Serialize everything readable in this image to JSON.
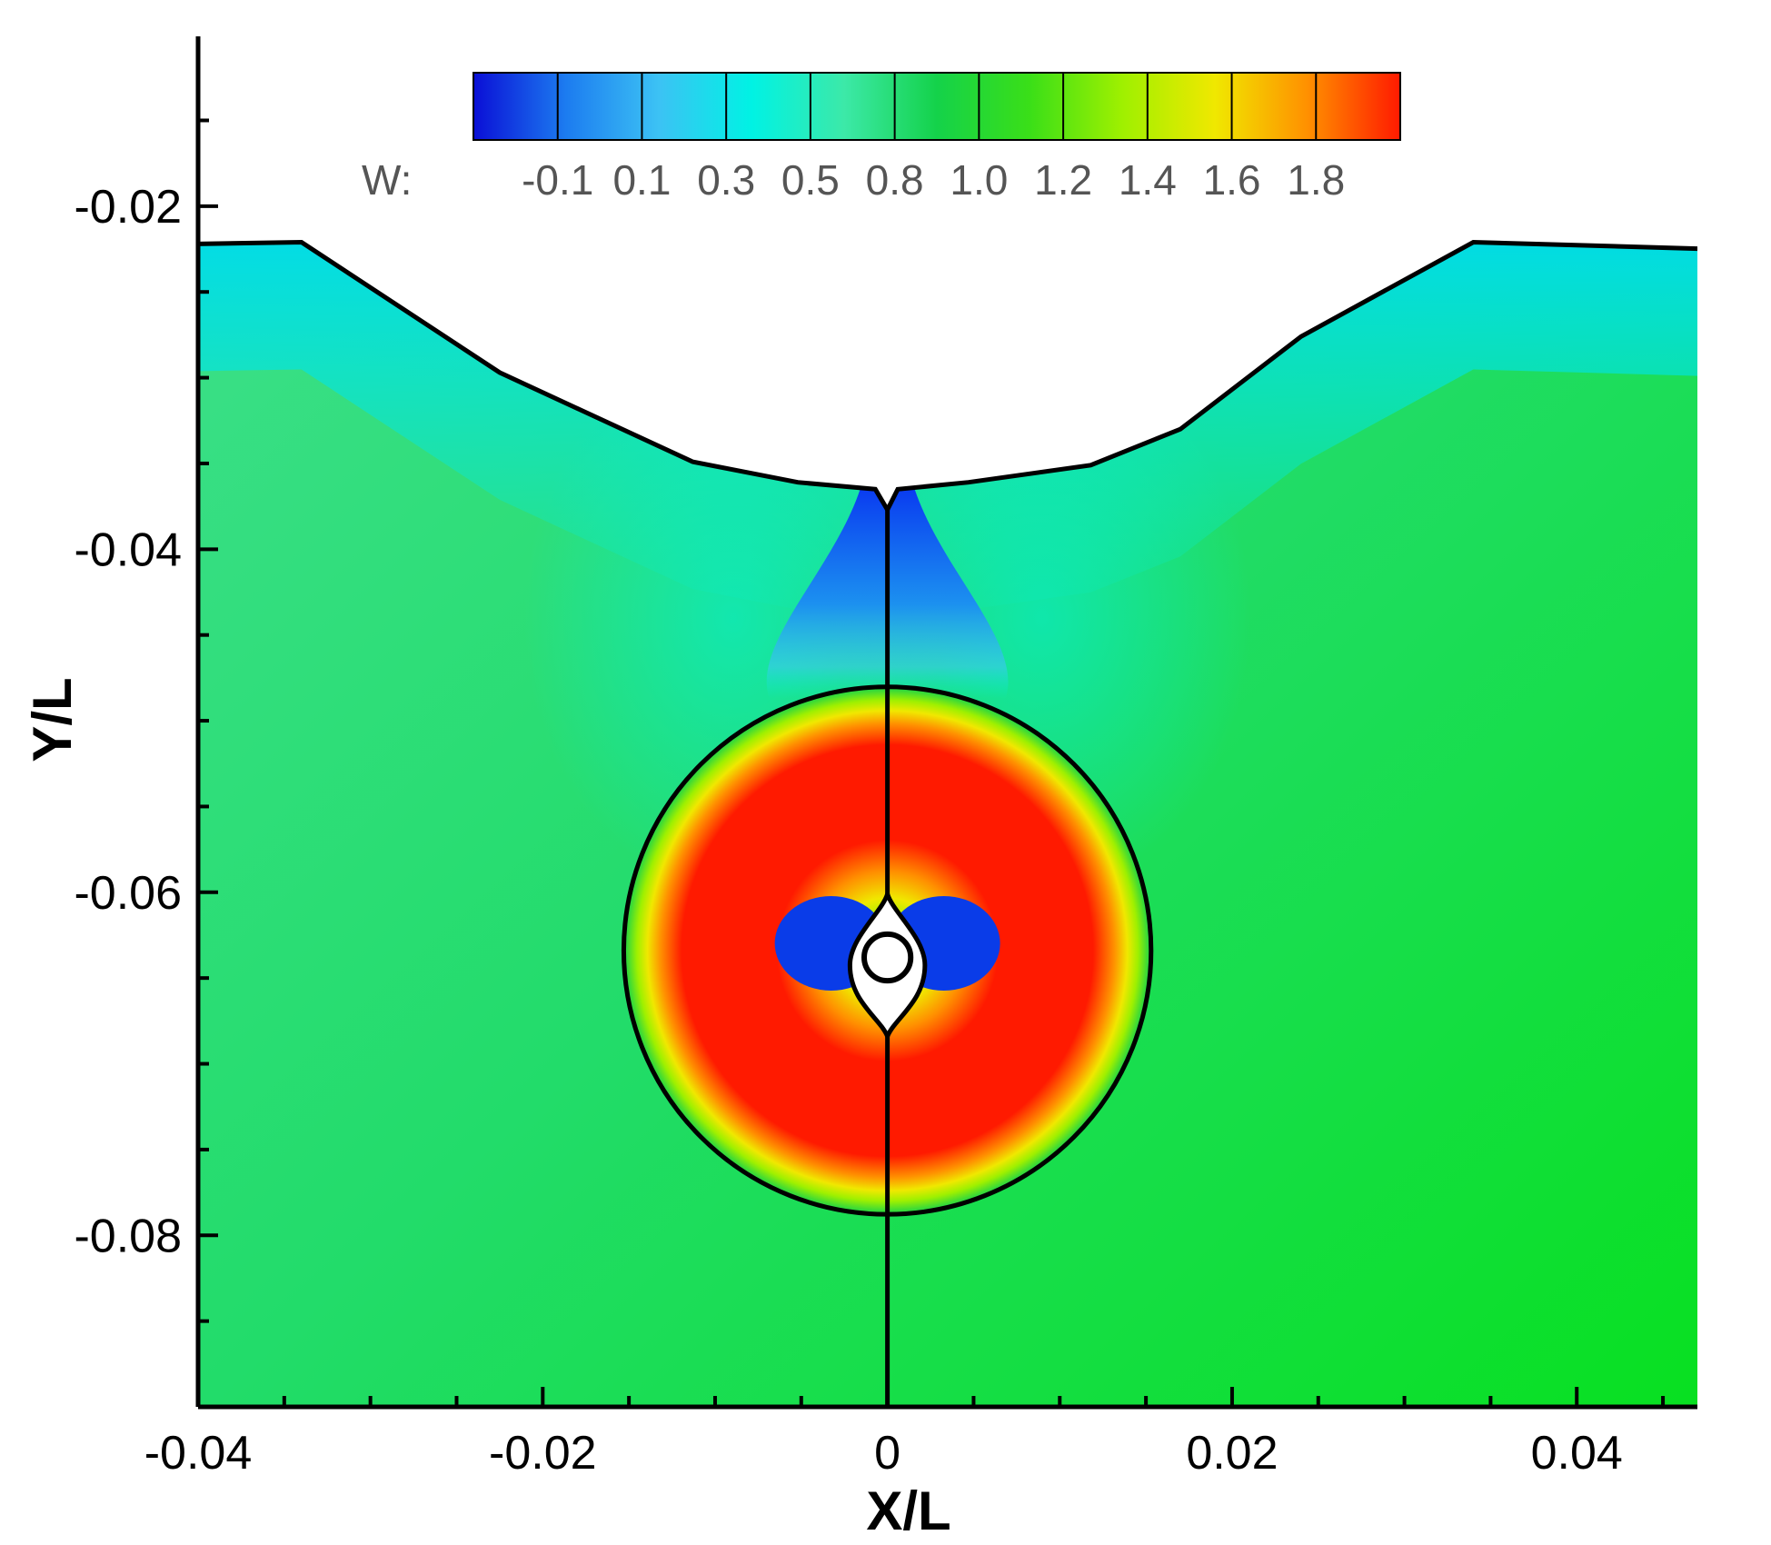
{
  "chart_data": {
    "type": "heatmap",
    "title": "",
    "xlabel": "X/L",
    "ylabel": "Y/L",
    "xlim": [
      -0.04,
      0.047
    ],
    "ylim": [
      -0.09,
      -0.0101
    ],
    "x_ticks": [
      {
        "value": -0.04,
        "label": "-0.04"
      },
      {
        "value": -0.02,
        "label": "-0.02"
      },
      {
        "value": 0,
        "label": "0"
      },
      {
        "value": 0.02,
        "label": "0.02"
      },
      {
        "value": 0.04,
        "label": "0.04"
      }
    ],
    "x_minor_step": 0.005,
    "y_ticks": [
      {
        "value": -0.02,
        "label": "-0.02"
      },
      {
        "value": -0.04,
        "label": "-0.04"
      },
      {
        "value": -0.06,
        "label": "-0.06"
      },
      {
        "value": -0.08,
        "label": "-0.08"
      }
    ],
    "y_minor_step": 0.005,
    "variable": "W",
    "colorbar": {
      "label": "W:",
      "levels": [
        "-0.1",
        "0.1",
        "0.3",
        "0.5",
        "0.8",
        "1.0",
        "1.2",
        "1.4",
        "1.6",
        "1.8"
      ],
      "colors": [
        "#0a0fd6",
        "#1c7cf0",
        "#3cc2f4",
        "#00f2e4",
        "#3ce9a8",
        "#14d24a",
        "#3adf18",
        "#9ff000",
        "#f0e800",
        "#ff9000",
        "#ff1a00"
      ],
      "placement": "top"
    },
    "field": {
      "background_W": 0.9,
      "free_surface": [
        {
          "x": -0.04,
          "y": -0.0222
        },
        {
          "x": -0.034,
          "y": -0.0221
        },
        {
          "x": -0.0225,
          "y": -0.0297
        },
        {
          "x": -0.0113,
          "y": -0.0349
        },
        {
          "x": -0.0052,
          "y": -0.0361
        },
        {
          "x": -0.0007,
          "y": -0.0365
        },
        {
          "x": 0,
          "y": -0.0377
        },
        {
          "x": 0.0006,
          "y": -0.0365
        },
        {
          "x": 0.0047,
          "y": -0.0361
        },
        {
          "x": 0.0118,
          "y": -0.0351
        },
        {
          "x": 0.017,
          "y": -0.033
        },
        {
          "x": 0.024,
          "y": -0.0276
        },
        {
          "x": 0.034,
          "y": -0.0221
        },
        {
          "x": 0.0478,
          "y": -0.0225
        }
      ],
      "bubble": {
        "center_x": 0.0,
        "center_y": -0.0634,
        "radius": 0.0153
      },
      "cavity": {
        "top_y": -0.0601,
        "bottom_y": -0.0684,
        "half_width": 0.0015
      },
      "inner_sphere": {
        "center_x": 0.0,
        "center_y": -0.0638,
        "radius": 0.001
      },
      "symmetry_line_x": 0.0,
      "high_velocity_ring_W": 1.9,
      "low_velocity_jet_W": -0.1
    }
  }
}
